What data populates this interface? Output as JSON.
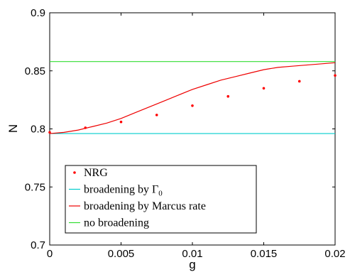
{
  "chart_data": {
    "type": "line",
    "title": "",
    "xlabel": "g",
    "ylabel": "N",
    "xlim": [
      0,
      0.02
    ],
    "ylim": [
      0.7,
      0.9
    ],
    "xticks": [
      0,
      0.005,
      0.01,
      0.015,
      0.02
    ],
    "xtick_labels": [
      "0",
      "0.005",
      "0.01",
      "0.015",
      "0.02"
    ],
    "yticks": [
      0.7,
      0.75,
      0.8,
      0.85,
      0.9
    ],
    "ytick_labels": [
      "0.7",
      "0.75",
      "0.8",
      "0.85",
      "0.9"
    ],
    "grid": false,
    "legend_position": "bottom-left",
    "series": [
      {
        "name": "NRG",
        "style": "markers",
        "color": "#ff0000",
        "x": [
          0,
          0.0025,
          0.005,
          0.0075,
          0.01,
          0.0125,
          0.015,
          0.0175,
          0.02
        ],
        "y": [
          0.797,
          0.801,
          0.806,
          0.812,
          0.82,
          0.828,
          0.835,
          0.841,
          0.846
        ]
      },
      {
        "name": "broadening by Γ0",
        "style": "line",
        "color": "#00cccc",
        "x": [
          0,
          0.02
        ],
        "y": [
          0.796,
          0.796
        ]
      },
      {
        "name": "broadening by Marcus rate",
        "style": "line",
        "color": "#ee0000",
        "x": [
          0,
          0.001,
          0.002,
          0.003,
          0.004,
          0.005,
          0.006,
          0.007,
          0.008,
          0.009,
          0.01,
          0.011,
          0.012,
          0.013,
          0.014,
          0.015,
          0.016,
          0.017,
          0.018,
          0.019,
          0.02
        ],
        "y": [
          0.796,
          0.797,
          0.799,
          0.802,
          0.805,
          0.809,
          0.814,
          0.819,
          0.824,
          0.829,
          0.834,
          0.838,
          0.842,
          0.845,
          0.848,
          0.851,
          0.853,
          0.854,
          0.855,
          0.856,
          0.857
        ]
      },
      {
        "name": "no broadening",
        "style": "line",
        "color": "#33dd33",
        "x": [
          0,
          0.02
        ],
        "y": [
          0.858,
          0.858
        ]
      }
    ]
  }
}
